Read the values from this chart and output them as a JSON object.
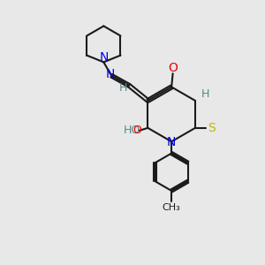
{
  "bg_color": "#e8e8e8",
  "bond_color": "#1a1a1a",
  "N_color": "#0000ee",
  "O_color": "#ee0000",
  "S_color": "#bbbb00",
  "H_color": "#558888",
  "lw": 1.5,
  "xlim": [
    0,
    10
  ],
  "ylim": [
    0,
    10
  ]
}
